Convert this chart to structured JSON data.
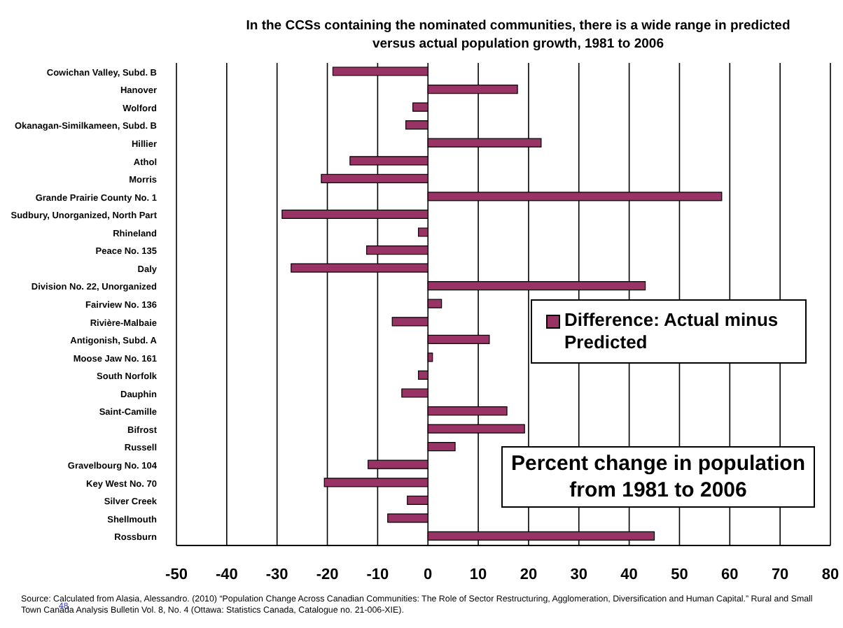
{
  "chart_data": {
    "type": "bar",
    "orientation": "horizontal",
    "title": "In the CCSs containing the nominated communities, there is a wide range in predicted versus actual population growth, 1981 to 2006",
    "categories": [
      "Cowichan Valley, Subd. B",
      "Hanover",
      "Wolford",
      "Okanagan-Similkameen, Subd. B",
      "Hillier",
      "Athol",
      "Morris",
      "Grande Prairie County No. 1",
      "Sudbury, Unorganized, North Part",
      "Rhineland",
      "Peace No. 135",
      "Daly",
      "Division No. 22, Unorganized",
      "Fairview No. 136",
      "Rivière-Malbaie",
      "Antigonish, Subd. A",
      "Moose Jaw No. 161",
      "South Norfolk",
      "Dauphin",
      "Saint-Camille",
      "Bifrost",
      "Russell",
      "Gravelbourg No. 104",
      "Key West No. 70",
      "Silver Creek",
      "Shellmouth",
      "Rossburn"
    ],
    "series": [
      {
        "name": "Difference: Actual minus Predicted",
        "color": "#993366",
        "values": [
          -18.9,
          17.8,
          -3.0,
          -4.4,
          22.5,
          -15.5,
          -21.2,
          58.4,
          -29.0,
          -1.9,
          -12.2,
          -27.2,
          43.2,
          2.7,
          -7.1,
          12.2,
          0.9,
          -1.9,
          -5.2,
          15.7,
          19.2,
          5.4,
          -11.9,
          -20.6,
          -4.1,
          -8.0,
          45.0
        ]
      }
    ],
    "xlim": [
      -50,
      80
    ],
    "xticks": [
      -50,
      -40,
      -30,
      -20,
      -10,
      0,
      10,
      20,
      30,
      40,
      50,
      60,
      70,
      80
    ],
    "grid": "x",
    "legend": "right",
    "annotations": [
      "Percent change in population from 1981 to 2006",
      "Source: Calculated from Alasia, Alessandro. (2010) “Population Change Across Canadian Communities: The Role of Sector Restructuring, Agglomeration, Diversification and Human Capital.” Rural and Small Town Canada Analysis Bulletin Vol. 8, No. 4 (Ottawa: Statistics Canada, Catalogue no. 21-006-XIE).",
      "48"
    ]
  }
}
